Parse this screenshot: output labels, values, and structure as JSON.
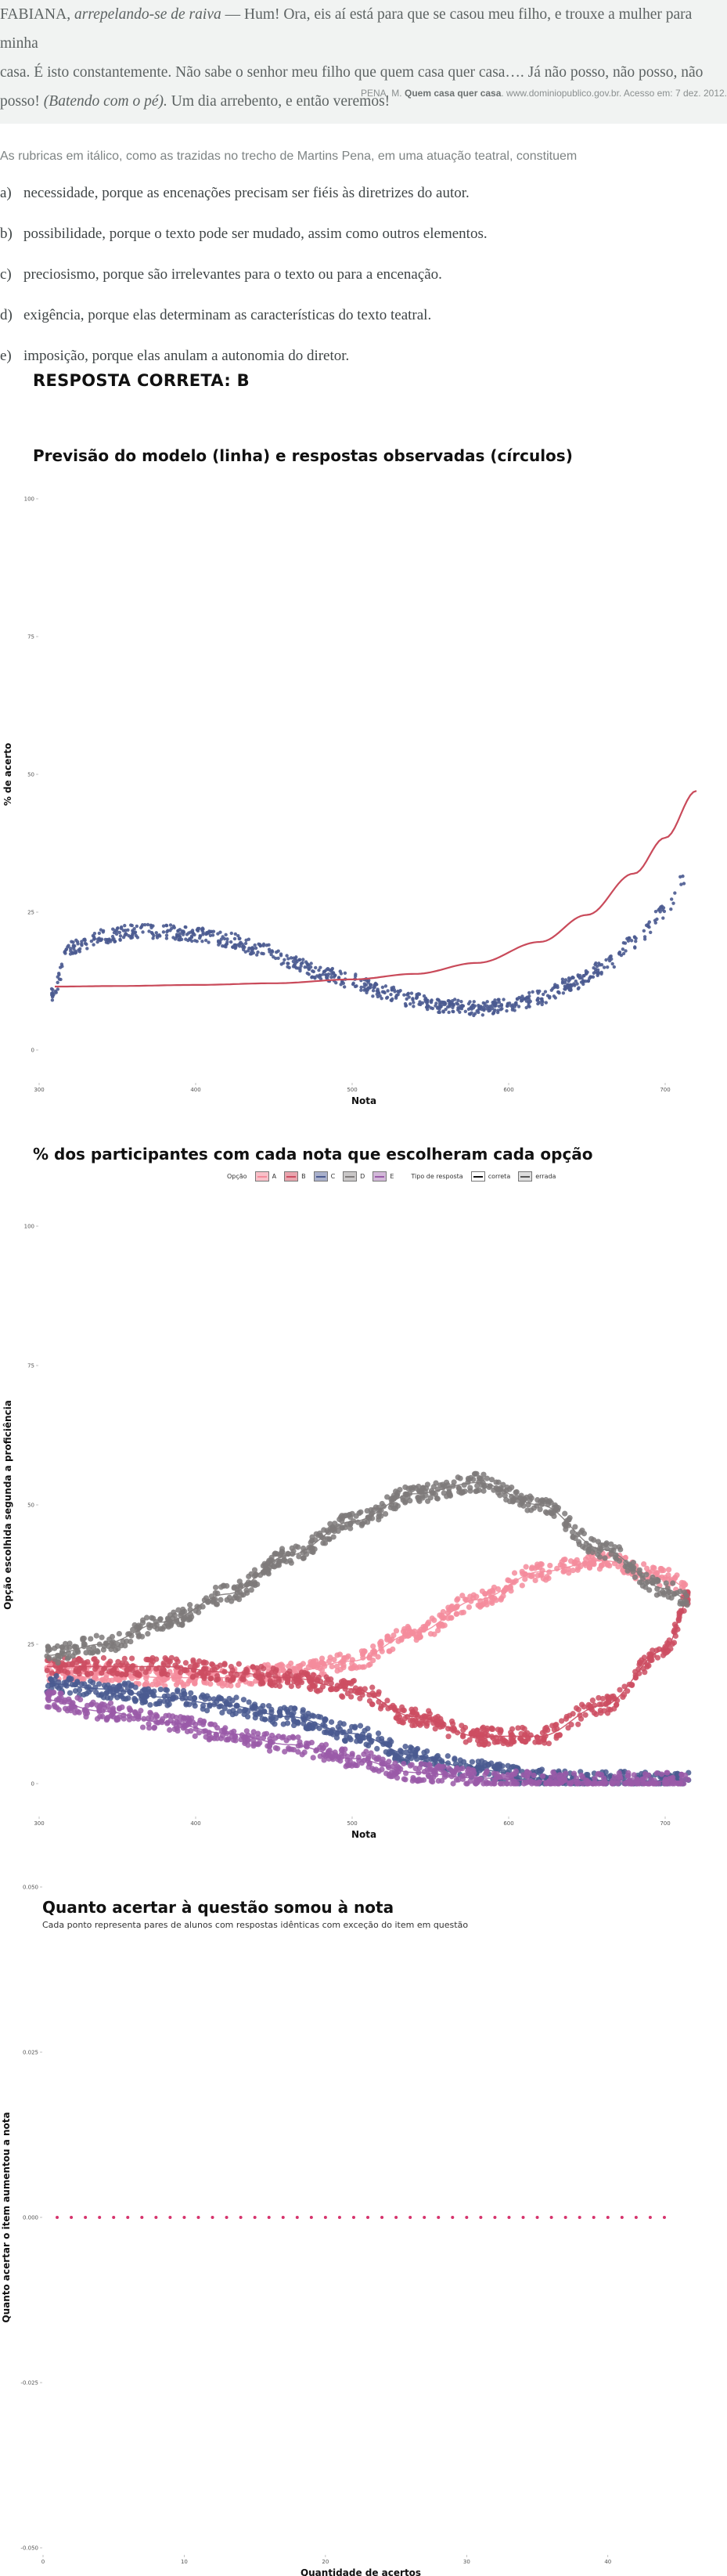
{
  "quote": {
    "speaker": "FABIANA,",
    "rubric1": "arrepelando-se de raiva",
    "line1_rest": "— Hum! Ora, eis aí está para que se casou meu filho, e trouxe a mulher para minha",
    "line2": "casa. É isto constantemente. Não sabe o senhor meu filho que quem casa quer casa…. Já não posso, não posso, não",
    "line3_start": "posso!",
    "rubric2": "(Batendo com o pé).",
    "line3_end": "Um dia arrebento, e então veremos!",
    "source_prefix": "PENA, M.",
    "source_title": "Quem casa quer casa",
    "source_rest": ". www.dominiopublico.gov.br. Acesso em: 7 dez. 2012."
  },
  "prompt": "As rubricas em itálico, como as trazidas no trecho de Martins Pena, em uma atuação teatral, constituem",
  "options": [
    {
      "letter": "a)",
      "text": "necessidade, porque as encenações precisam ser fiéis às diretrizes do autor."
    },
    {
      "letter": "b)",
      "text": "possibilidade, porque o texto pode ser mudado, assim como outros elementos."
    },
    {
      "letter": "c)",
      "text": "preciosismo, porque são irrelevantes para o texto ou para a encenação."
    },
    {
      "letter": "d)",
      "text": "exigência, porque elas determinam as características do texto teatral."
    },
    {
      "letter": "e)",
      "text": "imposição, porque elas anulam a autonomia do diretor."
    }
  ],
  "answer": "RESPOSTA CORRETA: B",
  "chart_data": [
    {
      "type": "scatter",
      "title": "Previsão do modelo (linha) e respostas observadas (círculos)",
      "xlabel": "Nota",
      "ylabel": "% de acerto",
      "xlim": [
        300,
        715
      ],
      "ylim": [
        0,
        100
      ],
      "x_ticks": [
        300,
        400,
        500,
        600,
        700
      ],
      "y_ticks": [
        0,
        25,
        50,
        75,
        100
      ],
      "model_line": {
        "color": "#c94a5a",
        "x": [
          310,
          350,
          400,
          450,
          500,
          540,
          580,
          620,
          650,
          680,
          700,
          720
        ],
        "y": [
          11.5,
          11.6,
          11.8,
          12.1,
          12.8,
          13.8,
          15.8,
          19.6,
          24.5,
          32,
          38.5,
          47
        ]
      },
      "observed": {
        "color": "#4a5a90",
        "x": [
          308,
          320,
          340,
          360,
          380,
          400,
          420,
          440,
          460,
          480,
          500,
          520,
          540,
          560,
          580,
          600,
          620,
          640,
          660,
          680,
          700,
          712
        ],
        "y": [
          10,
          18.5,
          20.5,
          21.5,
          21.5,
          21,
          20,
          18.5,
          16,
          14,
          12.5,
          10.5,
          9,
          8,
          7.5,
          8,
          9.5,
          12,
          15,
          19.5,
          25,
          31
        ]
      }
    },
    {
      "type": "scatter",
      "title": "% dos participantes com cada nota que escolheram cada opção",
      "xlabel": "Nota",
      "ylabel": "Opção escolhida segunda a proficiência",
      "xlim": [
        300,
        715
      ],
      "ylim": [
        0,
        100
      ],
      "x_ticks": [
        300,
        400,
        500,
        600,
        700
      ],
      "y_ticks": [
        0,
        25,
        50,
        75,
        100
      ],
      "legend": {
        "option_title": "Opção",
        "options": [
          "A",
          "B",
          "C",
          "D",
          "E"
        ],
        "type_title": "Tipo de resposta",
        "types": [
          "correta",
          "errada"
        ]
      },
      "x": [
        305,
        340,
        380,
        420,
        460,
        500,
        540,
        580,
        620,
        660,
        700,
        715
      ],
      "series": [
        {
          "name": "A",
          "color": "#f48c9c",
          "values": [
            20,
            20,
            19,
            19,
            20,
            22,
            27,
            33,
            38,
            40,
            37,
            35
          ]
        },
        {
          "name": "B",
          "color": "#cc4d62",
          "values": [
            21,
            21,
            21,
            20,
            19,
            17,
            12,
            8.5,
            8.5,
            14,
            24,
            33
          ]
        },
        {
          "name": "C",
          "color": "#4a5a90",
          "values": [
            18,
            17,
            15.5,
            14,
            12,
            9,
            5,
            2.5,
            1,
            0.6,
            0.5,
            0.5
          ]
        },
        {
          "name": "D",
          "color": "#7e7a7a",
          "values": [
            23,
            25,
            29,
            34,
            41,
            47,
            52,
            54,
            50,
            42,
            35,
            33
          ]
        },
        {
          "name": "E",
          "color": "#9a5aa8",
          "values": [
            15,
            13,
            11,
            9,
            7,
            4.5,
            2,
            1,
            0.5,
            0.3,
            0.4,
            0.5
          ]
        }
      ]
    },
    {
      "type": "scatter",
      "title": "Quanto acertar à questão somou à nota",
      "subtitle": "Cada ponto representa pares de alunos com respostas idênticas com exceção do item em questão",
      "xlabel": "Quantidade de acertos",
      "ylabel": "Quanto acertar o item aumentou a nota",
      "xlim": [
        0,
        45
      ],
      "ylim": [
        -0.05,
        0.05
      ],
      "x_ticks": [
        0,
        10,
        20,
        30,
        40
      ],
      "y_ticks": [
        -0.05,
        -0.025,
        0,
        0.025,
        0.05
      ],
      "y_tick_labels": [
        "-0.050",
        "-0.025",
        "0.000",
        "0.025",
        "0.050"
      ],
      "color": "#d6336c",
      "x": [
        1,
        2,
        3,
        4,
        5,
        6,
        7,
        8,
        9,
        10,
        11,
        12,
        13,
        14,
        15,
        16,
        17,
        18,
        19,
        20,
        21,
        22,
        23,
        24,
        25,
        26,
        27,
        28,
        29,
        30,
        31,
        32,
        33,
        34,
        35,
        36,
        37,
        38,
        39,
        40,
        41,
        42,
        43,
        44
      ],
      "y": [
        0,
        0,
        0,
        0,
        0,
        0,
        0,
        0,
        0,
        0,
        0,
        0,
        0,
        0,
        0,
        0,
        0,
        0,
        0,
        0,
        0,
        0,
        0,
        0,
        0,
        0,
        0,
        0,
        0,
        0,
        0,
        0,
        0,
        0,
        0,
        0,
        0,
        0,
        0,
        0,
        0,
        0,
        0,
        0
      ]
    }
  ]
}
